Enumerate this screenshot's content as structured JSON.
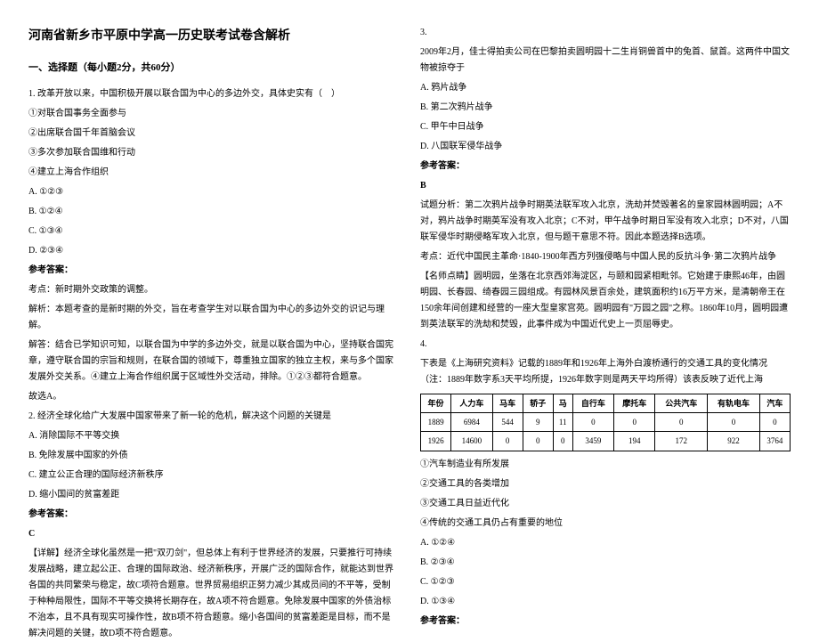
{
  "title": "河南省新乡市平原中学高一历史联考试卷含解析",
  "section1": "一、选择题（每小题2分，共60分）",
  "left": {
    "q1_stem": "1. 改革开放以来，中国积极开展以联合国为中心的多边外交，具体史实有（　）",
    "q1_o1": "①对联合国事务全面参与",
    "q1_o2": "②出席联合国千年首脑会议",
    "q1_o3": "③多次参加联合国维和行动",
    "q1_o4": "④建立上海合作组织",
    "q1_a": "A. ①②③",
    "q1_b": "B. ①②④",
    "q1_c": "C. ①③④",
    "q1_d": "D. ②③④",
    "ref_label": "参考答案：",
    "q1_kd": "考点：新时期外交政策的调整。",
    "q1_jx": "解析：本题考查的是新时期的外交，旨在考查学生对以联合国为中心的多边外交的识记与理解。",
    "q1_jd": "解答：结合已学知识可知，以联合国为中学的多边外交，就是以联合国为中心，坚持联合国宪章，遵守联合国的宗旨和规则，在联合国的领域下，尊重独立国家的独立主权，来与多个国家发展外交关系。④建立上海合作组织属于区域性外交活动，排除。①②③都符合题意。",
    "q1_gx": "故选A。",
    "q2_stem": "2. 经济全球化给广大发展中国家带来了新一轮的危机，解决这个问题的关键是",
    "q2_a": "A. 消除国际不平等交换",
    "q2_b": "B. 免除发展中国家的外债",
    "q2_c": "C. 建立公正合理的国际经济新秩序",
    "q2_d": "D. 缩小国间的贫富差距",
    "q2_ans": "C",
    "q2_jx": "【详解】经济全球化虽然是一把\"双刃剑\"，但总体上有利于世界经济的发展，只要推行可持续发展战略，建立起公正、合理的国际政治、经济新秩序，开展广泛的国际合作，就能达到世界各国的共同繁荣与稳定，故C项符合题意。世界贸易组织正努力减少其成员间的不平等，受制于种种局限性，国际不平等交换将长期存在，故A项不符合题意。免除发展中国家的外债治标不治本，且不具有现实可操作性，故B项不符合题意。缩小各国间的贫富差距是目标，而不是解决问题的关键，故D项不符合题意。"
  },
  "right": {
    "q3_num": "3.",
    "q3_stem": "2009年2月，佳士得拍卖公司在巴黎拍卖圆明园十二生肖铜兽首中的兔首、鼠首。这两件中国文物被掠夺于",
    "q3_a": "A. 鸦片战争",
    "q3_b": "B. 第二次鸦片战争",
    "q3_c": "C. 甲午中日战争",
    "q3_d": "D. 八国联军侵华战争",
    "ref_label": "参考答案：",
    "q3_ans": "B",
    "q3_fx": "试题分析：第二次鸦片战争时期英法联军攻入北京，洗劫并焚毁著名的皇家园林圆明园；A不对，鸦片战争时期英军没有攻入北京；C不对，甲午战争时期日军没有攻入北京；D不对，八国联军侵华时期侵略军攻入北京，但与题干意思不符。因此本题选择B选项。",
    "q3_kd": "考点：近代中国民主革命·1840-1900年西方列强侵略与中国人民的反抗斗争·第二次鸦片战争",
    "q3_dj": "【名师点睛】圆明园，坐落在北京西郊海淀区，与颐和园紧相毗邻。它始建于康熙46年，由圆明园、长春园、绮春园三园组成。有园林风景百余处，建筑面积约16万平方米，是清朝帝王在150余年间创建和经营的一座大型皇家宫苑。圆明园有\"万园之园\"之称。1860年10月，圆明园遭到英法联军的洗劫和焚毁，此事件成为中国近代史上一页屈辱史。",
    "q4_num": "4.",
    "q4_stem": "下表是《上海研究资料》记载的1889年和1926年上海外白渡桥通行的交通工具的变化情况（注：1889年数字系3天平均所提，1926年数字则是两天平均所得）该表反映了近代上海",
    "table": {
      "headers": [
        "年份",
        "人力车",
        "马车",
        "轿子",
        "马",
        "自行车",
        "摩托车",
        "公共汽车",
        "有轨电车",
        "汽车"
      ],
      "rows": [
        [
          "1889",
          "6984",
          "544",
          "9",
          "11",
          "0",
          "0",
          "0",
          "0",
          "0"
        ],
        [
          "1926",
          "14600",
          "0",
          "0",
          "0",
          "3459",
          "194",
          "172",
          "922",
          "3764"
        ]
      ],
      "col_count": 10
    },
    "q4_o1": "①汽车制造业有所发展",
    "q4_o2": "②交通工具的各类增加",
    "q4_o3": "③交通工具日益近代化",
    "q4_o4": "④传统的交通工具仍占有重要的地位",
    "q4_a": "A. ①②④",
    "q4_b": "B. ②③④",
    "q4_c": "C. ①②③",
    "q4_d": "D. ①③④",
    "q4_ref": "参考答案："
  }
}
